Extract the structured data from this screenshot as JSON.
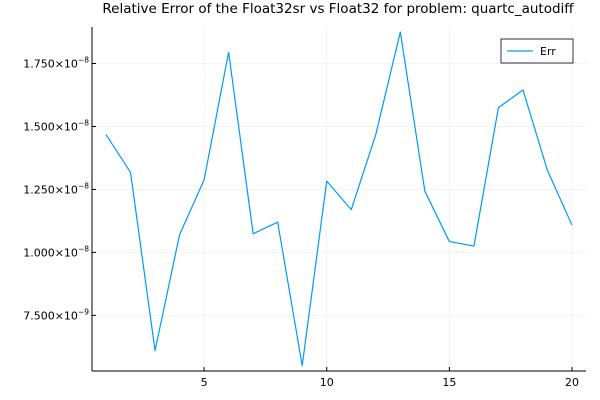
{
  "chart_data": {
    "type": "line",
    "title": "Relative Error of the Float32sr vs Float32 for problem: quartc_autodiff",
    "xlabel": "",
    "ylabel": "",
    "x": [
      1,
      2,
      3,
      4,
      5,
      6,
      7,
      8,
      9,
      10,
      11,
      12,
      13,
      14,
      15,
      16,
      17,
      18,
      19,
      20
    ],
    "series": [
      {
        "name": "Err",
        "color": "#009AFA",
        "values": [
          1.468e-08,
          1.318e-08,
          6.1e-09,
          1.07e-08,
          1.288e-08,
          1.795e-08,
          1.074e-08,
          1.12e-08,
          5.5e-09,
          1.283e-08,
          1.17e-08,
          1.468e-08,
          1.875e-08,
          1.243e-08,
          1.043e-08,
          1.025e-08,
          1.575e-08,
          1.645e-08,
          1.325e-08,
          1.108e-08
        ]
      }
    ],
    "xlim": [
      0.43,
      20.57
    ],
    "ylim": [
      5.29e-09,
      1.895e-08
    ],
    "x_ticks": [
      {
        "value": 5,
        "label": "5"
      },
      {
        "value": 10,
        "label": "10"
      },
      {
        "value": 15,
        "label": "15"
      },
      {
        "value": 20,
        "label": "20"
      }
    ],
    "y_ticks": [
      {
        "value": 7.5e-09,
        "mantissa": "7.500",
        "exponent": "−9"
      },
      {
        "value": 1e-08,
        "mantissa": "1.000",
        "exponent": "−8"
      },
      {
        "value": 1.25e-08,
        "mantissa": "1.250",
        "exponent": "−8"
      },
      {
        "value": 1.5e-08,
        "mantissa": "1.500",
        "exponent": "−8"
      },
      {
        "value": 1.75e-08,
        "mantissa": "1.750",
        "exponent": "−8"
      }
    ],
    "times_sign": "×10",
    "grid": true,
    "legend_position": "top-right"
  }
}
